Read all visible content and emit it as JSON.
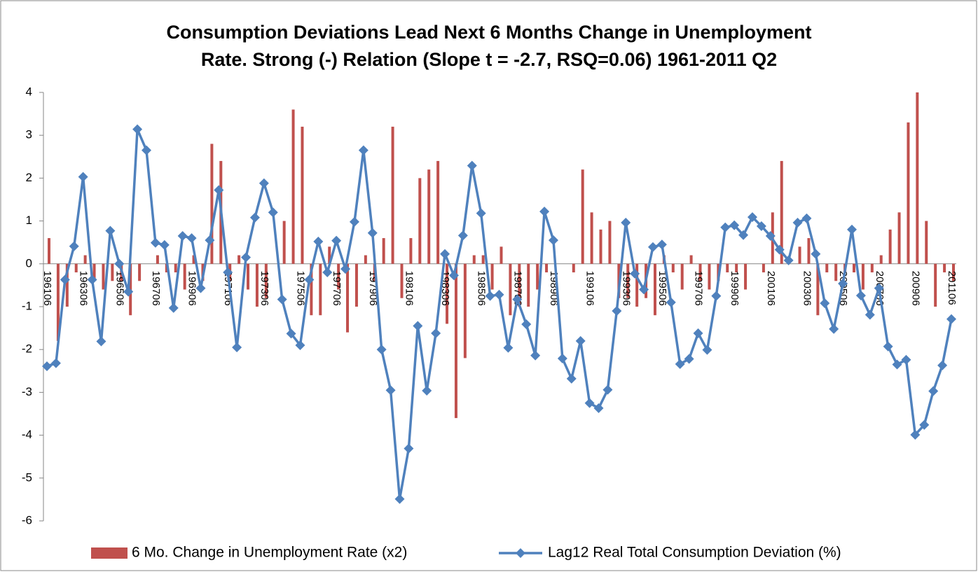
{
  "chart_data": {
    "type": "bar_line",
    "title": [
      "Consumption Deviations Lead Next 6 Months Change in Unemployment",
      "Rate.  Strong (-) Relation (Slope t = -2.7, RSQ=0.06) 1961-2011 Q2"
    ],
    "categories": [
      "196106",
      null,
      null,
      null,
      "196306",
      null,
      null,
      null,
      "196506",
      null,
      null,
      null,
      "196706",
      null,
      null,
      null,
      "196906",
      null,
      null,
      null,
      "197106",
      null,
      null,
      null,
      "197306",
      null,
      null,
      null,
      "197506",
      null,
      null,
      null,
      "197706",
      null,
      null,
      null,
      "197906",
      null,
      null,
      null,
      "198106",
      null,
      null,
      null,
      "198306",
      null,
      null,
      null,
      "198506",
      null,
      null,
      null,
      "198706",
      null,
      null,
      null,
      "198906",
      null,
      null,
      null,
      "199106",
      null,
      null,
      null,
      "199306",
      null,
      null,
      null,
      "199506",
      null,
      null,
      null,
      "199706",
      null,
      null,
      null,
      "199906",
      null,
      null,
      null,
      "200106",
      null,
      null,
      null,
      "200306",
      null,
      null,
      null,
      "200506",
      null,
      null,
      null,
      "200706",
      null,
      null,
      null,
      "200906",
      null,
      null,
      null,
      "201106"
    ],
    "series": [
      {
        "name": "6 Mo. Change in Unemployment Rate (x2)",
        "type": "bar",
        "color": "#c0504d",
        "values": [
          0.6,
          -1.8,
          -1.0,
          -0.2,
          0.2,
          -0.4,
          -0.6,
          -0.4,
          -0.4,
          -1.2,
          -0.4,
          0,
          0.2,
          -0.2,
          -0.2,
          -0.6,
          0.2,
          -0.4,
          2.8,
          2.4,
          -0.4,
          0.2,
          -0.6,
          -1.0,
          -0.8,
          0,
          1.0,
          3.6,
          3.2,
          -1.2,
          -1.2,
          0.4,
          -0.6,
          -1.6,
          -1.0,
          0.2,
          -0.4,
          0.6,
          3.2,
          -0.8,
          0.6,
          2.0,
          2.2,
          2.4,
          -1.4,
          -3.6,
          -2.2,
          0.2,
          0.2,
          -0.6,
          0.4,
          -1.2,
          -1.0,
          -1.0,
          -0.6,
          -0.2,
          0,
          0,
          -0.2,
          2.2,
          1.2,
          0.8,
          1.0,
          -0.8,
          -0.8,
          -1.0,
          -0.8,
          -1.2,
          0.2,
          -0.2,
          -0.6,
          0.2,
          -0.4,
          -0.6,
          -0.4,
          -0.2,
          -0.2,
          -0.6,
          0,
          -0.2,
          1.2,
          2.4,
          0,
          0.4,
          0.6,
          -1.2,
          -0.2,
          -0.4,
          -0.2,
          -0.2,
          -0.6,
          -0.2,
          0.2,
          0.8,
          1.2,
          3.3,
          4.0,
          1.0,
          -1.0,
          -0.2,
          -0.4
        ]
      },
      {
        "name": "Lag12 Real Total Consumption Deviation (%)",
        "type": "line",
        "color": "#4f81bd",
        "values": [
          -2.39,
          -2.32,
          -0.37,
          0.41,
          2.03,
          -0.37,
          -1.81,
          0.77,
          0,
          -0.65,
          3.14,
          2.65,
          0.49,
          0.44,
          -1.03,
          0.65,
          0.6,
          -0.57,
          0.55,
          1.72,
          -0.2,
          -1.95,
          0.15,
          1.08,
          1.88,
          1.2,
          -0.83,
          -1.63,
          -1.9,
          -0.37,
          0.52,
          -0.2,
          0.54,
          -0.12,
          0.98,
          2.65,
          0.72,
          -2.0,
          -2.95,
          -5.49,
          -4.31,
          -1.45,
          -2.96,
          -1.62,
          0.23,
          -0.27,
          0.66,
          2.29,
          1.18,
          -0.75,
          -0.72,
          -1.96,
          -0.83,
          -1.41,
          -2.14,
          1.22,
          0.55,
          -2.21,
          -2.68,
          -1.8,
          -3.25,
          -3.37,
          -2.94,
          -1.1,
          0.96,
          -0.23,
          -0.6,
          0.39,
          0.45,
          -0.9,
          -2.34,
          -2.22,
          -1.62,
          -2.01,
          -0.75,
          0.85,
          0.9,
          0.67,
          1.09,
          0.88,
          0.65,
          0.33,
          0.08,
          0.96,
          1.06,
          0.23,
          -0.92,
          -1.52,
          -0.46,
          0.8,
          -0.74,
          -1.19,
          -0.57,
          -1.93,
          -2.35,
          -2.24,
          -3.99,
          -3.76,
          -2.97,
          -2.37,
          -1.29
        ]
      }
    ],
    "ylim": [
      -6,
      4
    ],
    "yticks": [
      -6,
      -5,
      -4,
      -3,
      -2,
      -1,
      0,
      1,
      2,
      3,
      4
    ],
    "grid": false,
    "legend": "bottom"
  }
}
